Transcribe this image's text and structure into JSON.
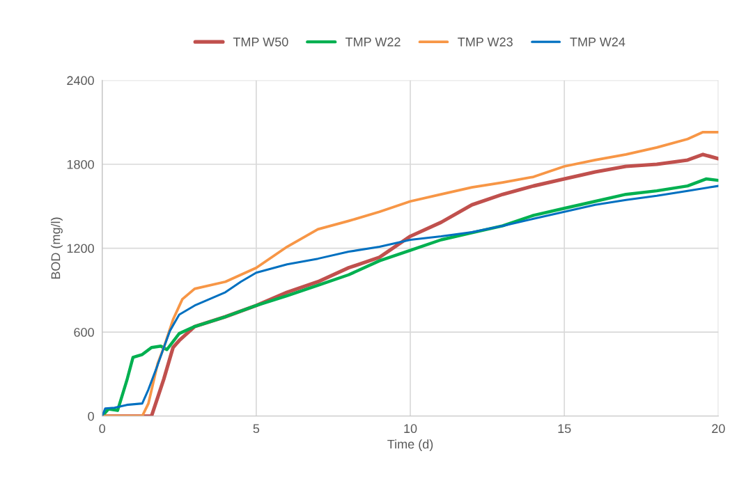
{
  "chart_data": {
    "type": "line",
    "xlabel": "Time (d)",
    "ylabel": "BOD (mg/l)",
    "xlim": [
      0,
      20
    ],
    "ylim": [
      0,
      2400
    ],
    "xticks": [
      0,
      5,
      10,
      15,
      20
    ],
    "yticks": [
      0,
      600,
      1200,
      1800,
      2400
    ],
    "grid": true,
    "legend": "top",
    "line_style": "solid",
    "marker": "none",
    "series": [
      {
        "name": "TMP W50",
        "color": "#c0504d",
        "x": [
          0,
          1.6,
          2,
          2.3,
          2.5,
          3,
          4,
          5,
          6,
          7,
          8,
          9,
          10,
          11,
          12,
          13,
          14,
          15,
          16,
          17,
          18,
          19,
          19.5,
          20
        ],
        "values": [
          0,
          0,
          265,
          490,
          540,
          640,
          710,
          790,
          885,
          960,
          1060,
          1135,
          1285,
          1385,
          1510,
          1585,
          1645,
          1695,
          1745,
          1785,
          1800,
          1830,
          1870,
          1840
        ]
      },
      {
        "name": "TMP W22",
        "color": "#00b050",
        "x": [
          0,
          0.2,
          0.5,
          0.8,
          1,
          1.3,
          1.6,
          1.9,
          2.1,
          2.5,
          3,
          4,
          5,
          6,
          7,
          8,
          9,
          10,
          11,
          12,
          13,
          14,
          15,
          16,
          17,
          18,
          19,
          19.6,
          20
        ],
        "values": [
          0,
          50,
          40,
          255,
          420,
          440,
          490,
          500,
          475,
          590,
          640,
          710,
          790,
          860,
          935,
          1010,
          1110,
          1185,
          1260,
          1310,
          1360,
          1435,
          1485,
          1535,
          1585,
          1610,
          1645,
          1695,
          1685
        ]
      },
      {
        "name": "TMP W23",
        "color": "#f79646",
        "x": [
          0,
          1.3,
          1.5,
          1.8,
          2,
          2.3,
          2.6,
          3,
          4,
          5,
          6,
          7,
          8,
          9,
          10,
          11,
          12,
          13,
          14,
          15,
          16,
          17,
          18,
          19,
          19.5,
          20
        ],
        "values": [
          0,
          0,
          90,
          375,
          490,
          690,
          835,
          910,
          960,
          1060,
          1210,
          1335,
          1395,
          1460,
          1535,
          1585,
          1635,
          1670,
          1710,
          1785,
          1830,
          1870,
          1920,
          1980,
          2030,
          2030
        ]
      },
      {
        "name": "TMP W24",
        "color": "#0070c0",
        "x": [
          0,
          0.1,
          0.4,
          0.8,
          1.3,
          1.5,
          1.8,
          2,
          2.2,
          2.5,
          3,
          4,
          4.5,
          5,
          6,
          7,
          8,
          9,
          10,
          11,
          12,
          13,
          14,
          15,
          16,
          17,
          18,
          19,
          20
        ],
        "values": [
          0,
          55,
          60,
          80,
          90,
          190,
          365,
          490,
          610,
          725,
          790,
          885,
          960,
          1025,
          1085,
          1125,
          1175,
          1210,
          1260,
          1285,
          1315,
          1360,
          1410,
          1460,
          1510,
          1545,
          1575,
          1610,
          1645
        ]
      }
    ]
  }
}
